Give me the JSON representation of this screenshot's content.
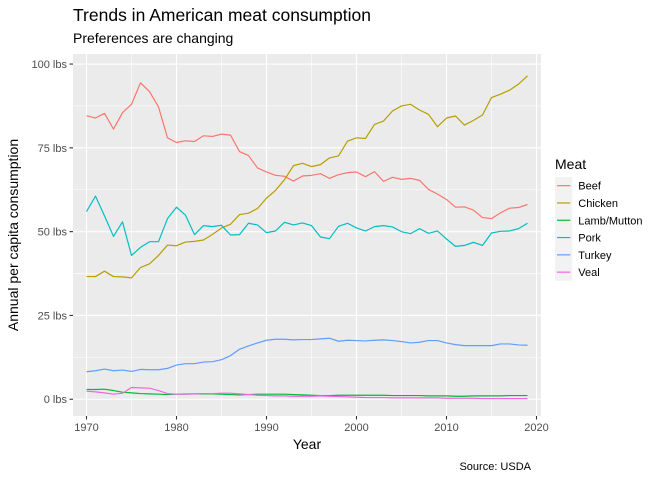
{
  "chart_data": {
    "type": "line",
    "title": "Trends in American meat consumption",
    "subtitle": "Preferences are changing",
    "xlabel": "Year",
    "ylabel": "Annual per capita consumption",
    "caption": "Source: USDA",
    "legend_title": "Meat",
    "legend_position": "right",
    "grid": true,
    "xlim": [
      1968.5,
      2020.5
    ],
    "ylim": [
      -5,
      103
    ],
    "x_ticks": [
      1970,
      1980,
      1990,
      2000,
      2010,
      2020
    ],
    "x_tick_labels": [
      "1970",
      "1980",
      "1990",
      "2000",
      "2010",
      "2020"
    ],
    "y_ticks": [
      0,
      25,
      50,
      75,
      100
    ],
    "y_tick_labels": [
      "0 lbs",
      "25 lbs",
      "50 lbs",
      "75 lbs",
      "100 lbs"
    ],
    "x": [
      1970,
      1971,
      1972,
      1973,
      1974,
      1975,
      1976,
      1977,
      1978,
      1979,
      1980,
      1981,
      1982,
      1983,
      1984,
      1985,
      1986,
      1987,
      1988,
      1989,
      1990,
      1991,
      1992,
      1993,
      1994,
      1995,
      1996,
      1997,
      1998,
      1999,
      2000,
      2001,
      2002,
      2003,
      2004,
      2005,
      2006,
      2007,
      2008,
      2009,
      2010,
      2011,
      2012,
      2013,
      2014,
      2015,
      2016,
      2017,
      2018,
      2019
    ],
    "series": [
      {
        "name": "Beef",
        "color": "#F8766D",
        "values": [
          84.6,
          83.9,
          85.3,
          80.6,
          85.5,
          88.0,
          94.4,
          91.8,
          87.2,
          78.0,
          76.6,
          77.1,
          76.9,
          78.6,
          78.4,
          79.1,
          78.8,
          73.9,
          72.7,
          69.0,
          67.8,
          66.8,
          66.5,
          65.1,
          66.6,
          66.8,
          67.3,
          65.9,
          67.0,
          67.6,
          67.8,
          66.4,
          67.9,
          65.0,
          66.2,
          65.6,
          65.9,
          65.3,
          62.6,
          61.2,
          59.6,
          57.3,
          57.4,
          56.4,
          54.2,
          53.9,
          55.6,
          57.0,
          57.2,
          58.1
        ]
      },
      {
        "name": "Chicken",
        "color": "#B79F00",
        "values": [
          36.6,
          36.6,
          38.2,
          36.6,
          36.5,
          36.2,
          39.3,
          40.4,
          42.9,
          46.0,
          45.8,
          46.9,
          47.1,
          47.5,
          49.2,
          51.1,
          52.2,
          55.1,
          55.5,
          56.9,
          60.0,
          62.3,
          65.5,
          69.7,
          70.4,
          69.4,
          70.0,
          72.0,
          72.6,
          77.0,
          78.0,
          77.8,
          82.0,
          83.0,
          86.0,
          87.5,
          88.0,
          86.3,
          85.0,
          81.3,
          83.9,
          84.5,
          81.8,
          83.2,
          84.8,
          90.0,
          91.0,
          92.2,
          94.0,
          96.5
        ]
      },
      {
        "name": "Lamb/Mutton",
        "color": "#00BA38",
        "values": [
          2.9,
          2.9,
          3.0,
          2.6,
          2.1,
          1.9,
          1.7,
          1.6,
          1.5,
          1.4,
          1.5,
          1.5,
          1.6,
          1.6,
          1.6,
          1.5,
          1.4,
          1.3,
          1.4,
          1.5,
          1.5,
          1.5,
          1.5,
          1.4,
          1.3,
          1.2,
          1.1,
          1.1,
          1.2,
          1.2,
          1.2,
          1.2,
          1.2,
          1.2,
          1.1,
          1.1,
          1.1,
          1.1,
          1.0,
          1.0,
          1.0,
          0.9,
          0.9,
          1.0,
          1.0,
          1.0,
          1.0,
          1.1,
          1.1,
          1.1
        ]
      },
      {
        "name": "Pork",
        "color": "#00BFC4",
        "values": [
          56.0,
          60.6,
          54.7,
          48.6,
          52.9,
          42.9,
          45.3,
          47.0,
          47.0,
          53.9,
          57.3,
          54.9,
          49.1,
          51.8,
          51.5,
          51.9,
          49.0,
          49.1,
          52.5,
          52.0,
          49.7,
          50.2,
          52.8,
          52.0,
          52.6,
          51.8,
          48.4,
          47.9,
          51.6,
          52.5,
          51.1,
          50.2,
          51.5,
          51.8,
          51.4,
          50.0,
          49.4,
          50.9,
          49.5,
          50.2,
          47.8,
          45.6,
          45.9,
          46.8,
          45.9,
          49.6,
          50.1,
          50.2,
          50.9,
          52.5
        ]
      },
      {
        "name": "Turkey",
        "color": "#619CFF",
        "values": [
          8.2,
          8.5,
          9.0,
          8.5,
          8.7,
          8.3,
          8.9,
          8.8,
          8.8,
          9.2,
          10.2,
          10.6,
          10.6,
          11.1,
          11.2,
          11.8,
          13.0,
          14.9,
          15.9,
          16.8,
          17.6,
          17.9,
          17.9,
          17.7,
          17.8,
          17.8,
          18.0,
          18.2,
          17.3,
          17.6,
          17.5,
          17.4,
          17.6,
          17.7,
          17.5,
          17.2,
          16.8,
          17.0,
          17.5,
          17.5,
          16.8,
          16.3,
          16.0,
          16.0,
          16.0,
          16.0,
          16.5,
          16.5,
          16.2,
          16.1
        ]
      },
      {
        "name": "Veal",
        "color": "#F564E3",
        "values": [
          2.4,
          2.2,
          1.9,
          1.5,
          1.8,
          3.5,
          3.4,
          3.3,
          2.6,
          1.7,
          1.5,
          1.6,
          1.6,
          1.7,
          1.7,
          1.8,
          1.8,
          1.6,
          1.4,
          1.2,
          1.1,
          1.0,
          1.0,
          0.9,
          0.9,
          0.9,
          1.0,
          0.9,
          0.8,
          0.7,
          0.6,
          0.5,
          0.5,
          0.5,
          0.4,
          0.4,
          0.4,
          0.4,
          0.4,
          0.4,
          0.3,
          0.3,
          0.3,
          0.3,
          0.2,
          0.2,
          0.2,
          0.2,
          0.2,
          0.2
        ]
      }
    ]
  }
}
